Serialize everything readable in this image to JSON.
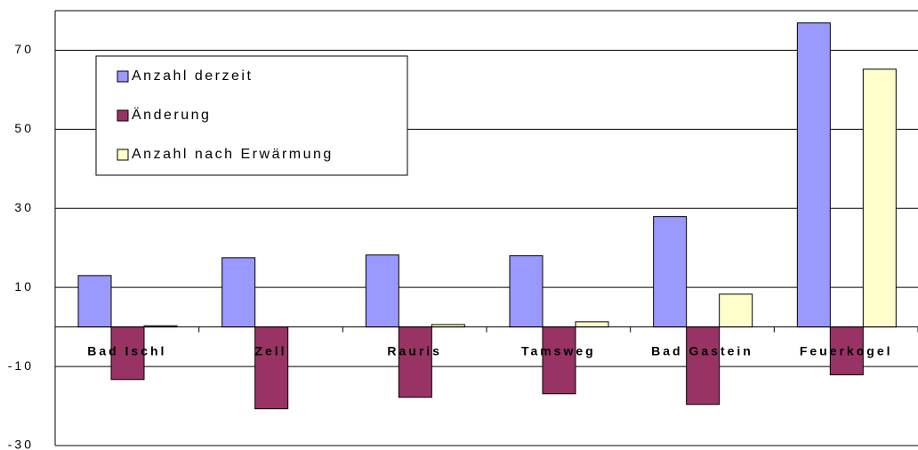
{
  "chart_data": {
    "type": "bar",
    "categories": [
      "Bad Ischl",
      "Zell",
      "Rauris",
      "Tamsweg",
      "Bad Gastein",
      "Feuerkogel"
    ],
    "series": [
      {
        "name": "Anzahl derzeit",
        "color": "#9999ff",
        "values": [
          13.0,
          17.5,
          18.2,
          18.0,
          27.9,
          76.9
        ]
      },
      {
        "name": "Änderung",
        "color": "#993366",
        "values": [
          -13.3,
          -20.7,
          -17.8,
          -16.9,
          -19.6,
          -12.1
        ]
      },
      {
        "name": "Anzahl nach Erwärmung",
        "color": "#ffffcc",
        "values": [
          0.3,
          0,
          0.6,
          1.3,
          8.3,
          65.2
        ]
      }
    ],
    "ylim": [
      -30,
      80
    ],
    "yticks": [
      -30,
      -10,
      10,
      30,
      50,
      70
    ],
    "grid": true
  }
}
